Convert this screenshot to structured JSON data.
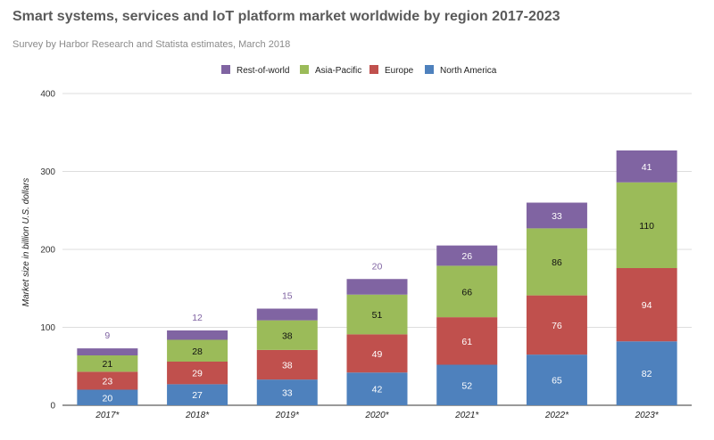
{
  "title": "Smart systems, services and IoT platform market worldwide by region 2017-2023",
  "subtitle": "Survey by Harbor Research and Statista estimates, March 2018",
  "chart_data": {
    "type": "bar",
    "stacked": true,
    "categories": [
      "2017*",
      "2018*",
      "2019*",
      "2020*",
      "2021*",
      "2022*",
      "2023*"
    ],
    "series": [
      {
        "name": "North America",
        "color": "#4e81bd",
        "label_color": "#ffffff",
        "values": [
          20,
          27,
          33,
          42,
          52,
          65,
          82
        ]
      },
      {
        "name": "Europe",
        "color": "#c0504d",
        "label_color": "#ffffff",
        "values": [
          23,
          29,
          38,
          49,
          61,
          76,
          94
        ]
      },
      {
        "name": "Asia-Pacific",
        "color": "#9bbb59",
        "label_color": "#111111",
        "values": [
          21,
          28,
          38,
          51,
          66,
          86,
          110
        ]
      },
      {
        "name": "Rest-of-world",
        "color": "#8064a2",
        "label_color": "#ffffff",
        "values": [
          9,
          12,
          15,
          20,
          26,
          33,
          41
        ]
      }
    ],
    "legend_order": [
      "Rest-of-world",
      "Asia-Pacific",
      "Europe",
      "North America"
    ],
    "legend_position": "top",
    "xlabel": "",
    "ylabel": "Market size in billion U.S. dollars",
    "ylim": [
      0,
      400
    ],
    "yticks": [
      0,
      100,
      200,
      300,
      400
    ],
    "grid": true,
    "outside_label_color": "#8064a2"
  }
}
